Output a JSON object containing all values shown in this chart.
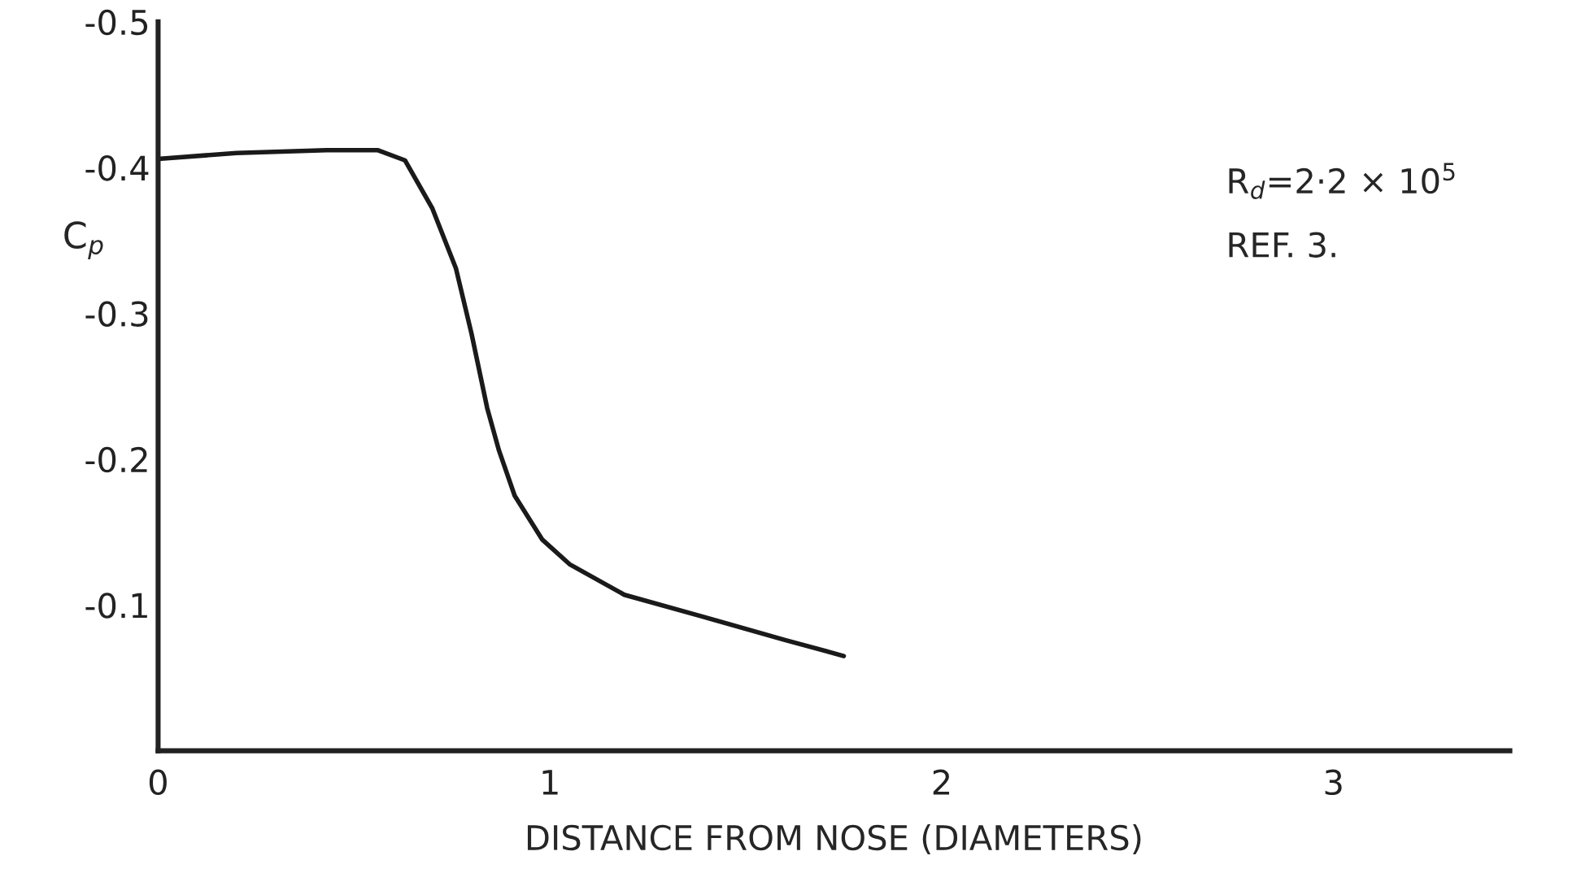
{
  "chart_data": {
    "type": "line",
    "xlabel": "DISTANCE FROM NOSE (DIAMETERS)",
    "ylabel": "C$_{p}$",
    "annotations": [
      "R$_{d}$=2·2 × 10$^{5}$",
      "REF. 3."
    ],
    "series": [
      {
        "color": "#1a1a1a",
        "x": [
          0,
          0.2,
          0.43,
          0.56,
          0.63,
          0.7,
          0.76,
          0.8,
          0.84,
          0.87,
          0.91,
          0.98,
          1.05,
          1.19,
          1.39,
          1.6,
          1.75
        ],
        "values": [
          -0.406,
          -0.41,
          -0.412,
          -0.412,
          -0.405,
          -0.372,
          -0.331,
          -0.286,
          -0.235,
          -0.206,
          -0.175,
          -0.145,
          -0.128,
          -0.107,
          -0.092,
          -0.076,
          -0.065
        ]
      }
    ],
    "xlim": [
      0,
      3.45
    ],
    "xticks": [
      0,
      1,
      2,
      3
    ],
    "ylim": [
      0,
      -0.5
    ],
    "yticks": [
      -0.5,
      -0.4,
      -0.3,
      -0.2,
      -0.1
    ],
    "grid": false,
    "legend": false,
    "marker": "none",
    "line_style": "solid"
  }
}
